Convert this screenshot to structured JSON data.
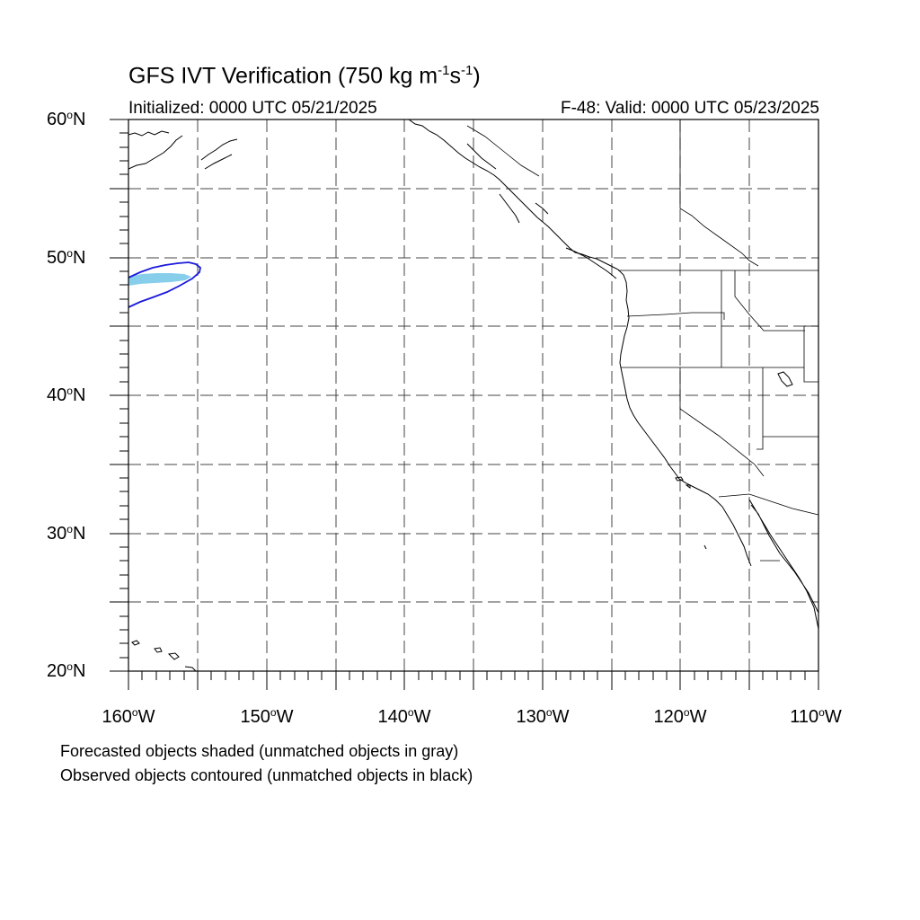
{
  "title": {
    "main": "GFS IVT Verification (750 kg m",
    "sup1": "-1",
    "mid": "s",
    "sup2": "-1",
    "end": ")"
  },
  "initialized": "Initialized: 0000 UTC 05/21/2025",
  "valid": "F-48: Valid: 0000 UTC 05/23/2025",
  "lat_labels": [
    {
      "value": "60",
      "unit": "N"
    },
    {
      "value": "50",
      "unit": "N"
    },
    {
      "value": "40",
      "unit": "N"
    },
    {
      "value": "30",
      "unit": "N"
    },
    {
      "value": "20",
      "unit": "N"
    }
  ],
  "lon_labels": [
    {
      "value": "160",
      "unit": "W"
    },
    {
      "value": "150",
      "unit": "W"
    },
    {
      "value": "140",
      "unit": "W"
    },
    {
      "value": "130",
      "unit": "W"
    },
    {
      "value": "120",
      "unit": "W"
    },
    {
      "value": "110",
      "unit": "W"
    }
  ],
  "degree_symbol": "o",
  "caption_1": "Forecasted objects shaded (unmatched objects in gray)",
  "caption_2": "Observed objects contoured (unmatched objects in black)",
  "map": {
    "lon_range": [
      -160,
      -110
    ],
    "lat_range": [
      20,
      60
    ],
    "gridline_step_deg": 5,
    "forecast_object_color": "#87ceeb",
    "observed_contour_color": "#1a1adc",
    "coastline_color": "#000000"
  }
}
